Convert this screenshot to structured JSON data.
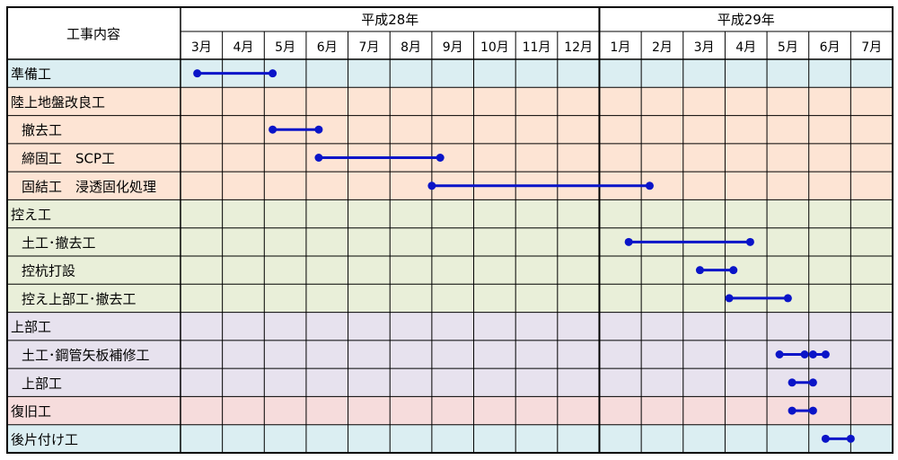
{
  "chart_data": {
    "type": "gantt",
    "title": "",
    "header_label": "工事内容",
    "years": [
      {
        "label": "平成28年",
        "months": 10
      },
      {
        "label": "平成29年",
        "months": 7
      }
    ],
    "months": [
      "3月",
      "4月",
      "5月",
      "6月",
      "7月",
      "8月",
      "9月",
      "10月",
      "11月",
      "12月",
      "1月",
      "2月",
      "3月",
      "4月",
      "5月",
      "6月",
      "7月"
    ],
    "groups": {
      "prep": "#dbeef2",
      "land": "#fde4d4",
      "anchor": "#e9efd9",
      "super": "#e7e2ee",
      "restore": "#f6dcdc",
      "cleanup": "#dbeef2"
    },
    "bar_color": "#0a14c8",
    "tasks": [
      {
        "label": "準備工",
        "indent": false,
        "group": "prep",
        "bars": [
          [
            0.4,
            2.2
          ]
        ]
      },
      {
        "label": "陸上地盤改良工",
        "indent": false,
        "group": "land",
        "bars": []
      },
      {
        "label": "撤去工",
        "indent": true,
        "group": "land",
        "bars": [
          [
            2.2,
            3.3
          ]
        ]
      },
      {
        "label": "締固工　SCP工",
        "indent": true,
        "group": "land",
        "bars": [
          [
            3.3,
            6.2
          ]
        ]
      },
      {
        "label": "固結工　浸透固化処理",
        "indent": true,
        "group": "land",
        "bars": [
          [
            6.0,
            11.2
          ]
        ]
      },
      {
        "label": "控え工",
        "indent": false,
        "group": "anchor",
        "bars": []
      },
      {
        "label": "土工･撤去工",
        "indent": true,
        "group": "anchor",
        "bars": [
          [
            10.7,
            13.6
          ]
        ]
      },
      {
        "label": "控杭打設",
        "indent": true,
        "group": "anchor",
        "bars": [
          [
            12.4,
            13.2
          ]
        ]
      },
      {
        "label": "控え上部工･撤去工",
        "indent": true,
        "group": "anchor",
        "bars": [
          [
            13.1,
            14.5
          ]
        ]
      },
      {
        "label": "上部工",
        "indent": false,
        "group": "super",
        "bars": []
      },
      {
        "label": "土工･鋼管矢板補修工",
        "indent": true,
        "group": "super",
        "bars": [
          [
            14.3,
            14.9
          ],
          [
            15.1,
            15.4
          ]
        ]
      },
      {
        "label": "上部工",
        "indent": true,
        "group": "super",
        "bars": [
          [
            14.6,
            15.1
          ]
        ]
      },
      {
        "label": "復旧工",
        "indent": false,
        "group": "restore",
        "bars": [
          [
            14.6,
            15.1
          ]
        ]
      },
      {
        "label": "後片付け工",
        "indent": false,
        "group": "cleanup",
        "bars": [
          [
            15.4,
            16.0
          ]
        ]
      }
    ]
  }
}
